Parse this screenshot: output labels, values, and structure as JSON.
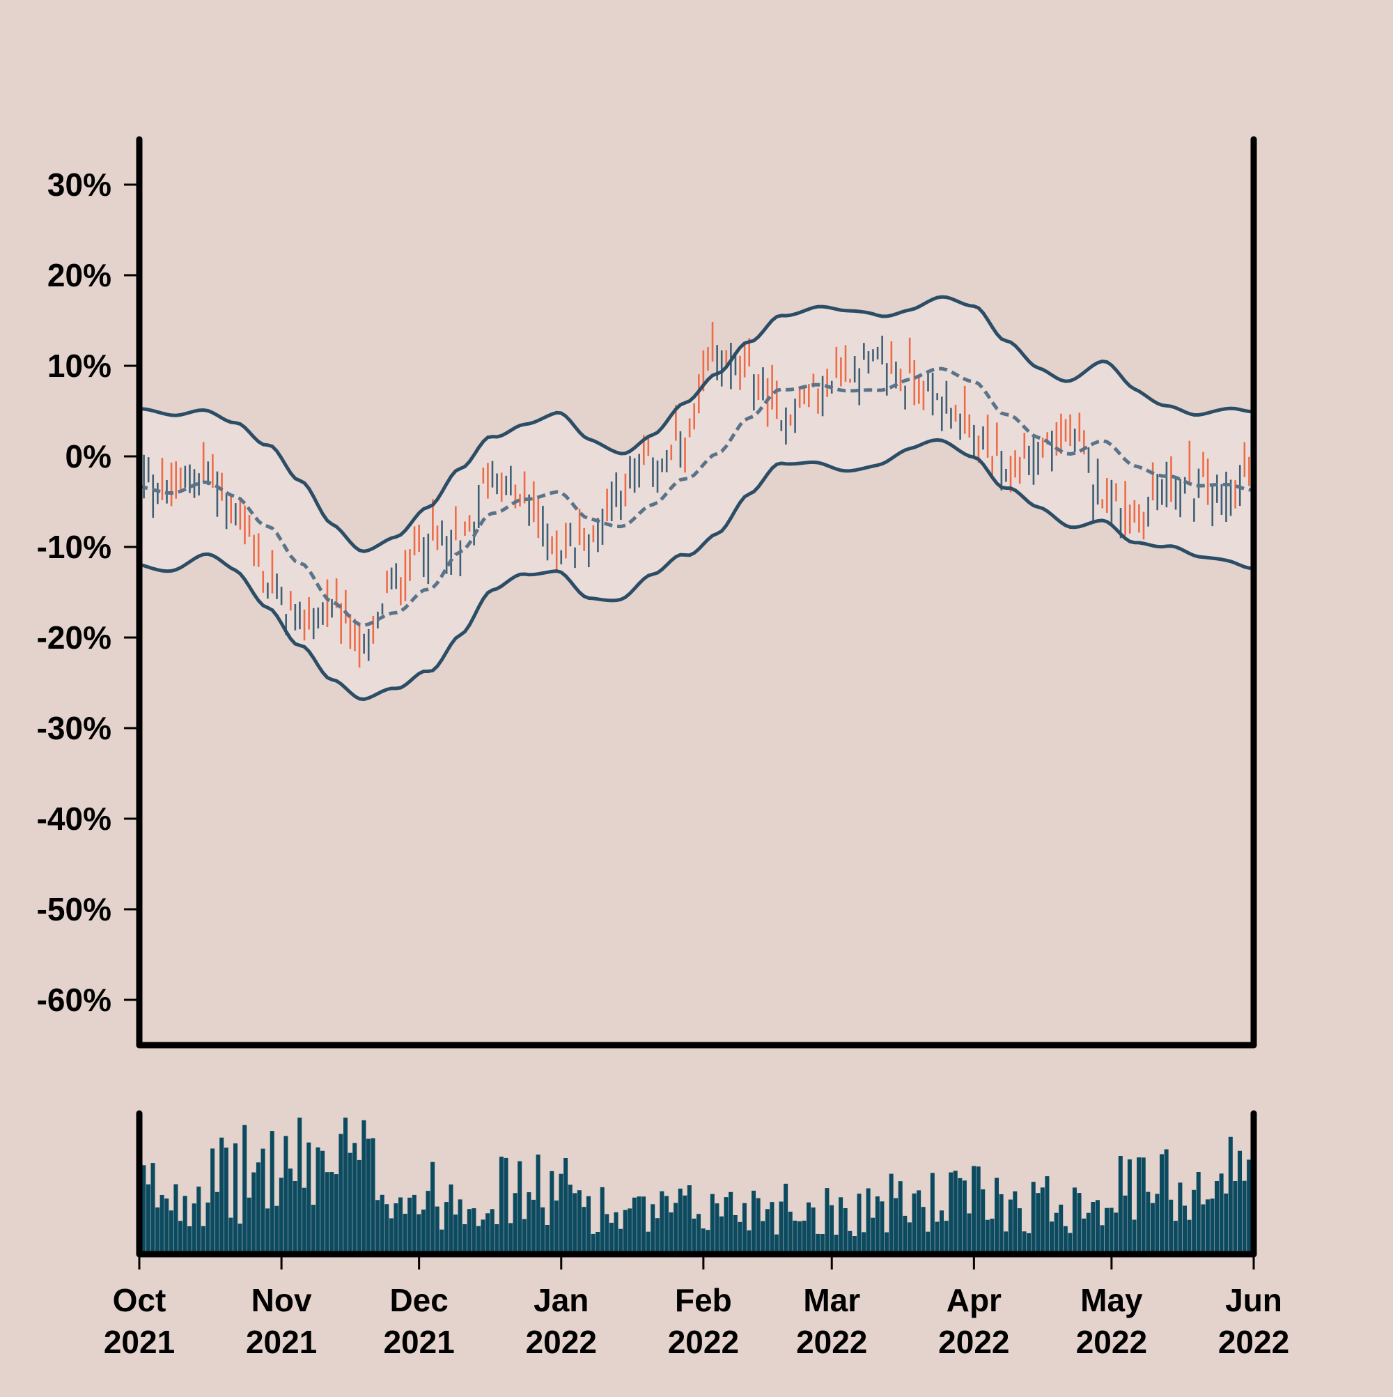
{
  "chart_data": {
    "type": "ohlc",
    "title": "",
    "xlabel": "",
    "ylabel": "",
    "y_axis": {
      "ylim": [
        -65,
        35
      ],
      "ticks": [
        30,
        20,
        10,
        0,
        -10,
        -20,
        -30,
        -40,
        -50,
        -60
      ],
      "tick_labels": [
        "30%",
        "20%",
        "10%",
        "0%",
        "-10%",
        "-20%",
        "-30%",
        "-40%",
        "-50%",
        "-60%"
      ]
    },
    "x_axis": {
      "xlim": [
        "2021-10-01",
        "2022-06-01"
      ],
      "ticks": [
        "2021-10-01",
        "2021-11-01",
        "2021-12-01",
        "2022-01-01",
        "2022-02-01",
        "2022-03-01",
        "2022-04-01",
        "2022-05-01",
        "2022-06-01"
      ],
      "tick_labels": [
        [
          "Oct",
          "2021"
        ],
        [
          "Nov",
          "2021"
        ],
        [
          "Dec",
          "2021"
        ],
        [
          "Jan",
          "2022"
        ],
        [
          "Feb",
          "2022"
        ],
        [
          "Mar",
          "2022"
        ],
        [
          "Apr",
          "2022"
        ],
        [
          "May",
          "2022"
        ],
        [
          "Jun",
          "2022"
        ]
      ]
    },
    "grid": false,
    "legend": "none",
    "colors": {
      "background": "#e4d3cc",
      "band_fill": "#eadcd8",
      "up": "#3e5f74",
      "down": "#ee6b47",
      "band_line": "#2b4d66",
      "middle_line": "#5a7389",
      "volume": "#0c4a60",
      "axis": "#000000"
    },
    "middle_band_path": [
      [
        "2021-10-01",
        -3.5
      ],
      [
        "2021-10-08",
        -3.8
      ],
      [
        "2021-10-15",
        -3.0
      ],
      [
        "2021-10-22",
        -4.5
      ],
      [
        "2021-10-29",
        -7.5
      ],
      [
        "2021-11-05",
        -12.0
      ],
      [
        "2021-11-12",
        -16.0
      ],
      [
        "2021-11-19",
        -18.5
      ],
      [
        "2021-11-26",
        -17.5
      ],
      [
        "2021-12-03",
        -14.5
      ],
      [
        "2021-12-10",
        -10.5
      ],
      [
        "2021-12-17",
        -6.5
      ],
      [
        "2021-12-24",
        -4.5
      ],
      [
        "2021-12-31",
        -4.0
      ],
      [
        "2022-01-07",
        -7.0
      ],
      [
        "2022-01-14",
        -7.5
      ],
      [
        "2022-01-21",
        -5.5
      ],
      [
        "2022-01-28",
        -2.5
      ],
      [
        "2022-02-04",
        0.5
      ],
      [
        "2022-02-11",
        4.0
      ],
      [
        "2022-02-18",
        7.5
      ],
      [
        "2022-02-25",
        8.0
      ],
      [
        "2022-03-04",
        7.0
      ],
      [
        "2022-03-11",
        7.5
      ],
      [
        "2022-03-18",
        8.5
      ],
      [
        "2022-03-25",
        9.5
      ],
      [
        "2022-04-01",
        8.5
      ],
      [
        "2022-04-08",
        4.5
      ],
      [
        "2022-04-15",
        2.0
      ],
      [
        "2022-04-22",
        0.5
      ],
      [
        "2022-04-29",
        1.5
      ],
      [
        "2022-05-06",
        -1.0
      ],
      [
        "2022-05-13",
        -2.0
      ],
      [
        "2022-05-20",
        -3.5
      ],
      [
        "2022-05-27",
        -3.0
      ],
      [
        "2022-06-01",
        -3.5
      ]
    ],
    "band_width_path": [
      [
        "2021-10-01",
        8.5
      ],
      [
        "2021-10-15",
        8.0
      ],
      [
        "2021-10-29",
        9.0
      ],
      [
        "2021-11-12",
        8.5
      ],
      [
        "2021-11-26",
        8.5
      ],
      [
        "2021-12-10",
        9.0
      ],
      [
        "2021-12-24",
        8.5
      ],
      [
        "2022-01-07",
        8.5
      ],
      [
        "2022-01-21",
        8.0
      ],
      [
        "2022-02-04",
        8.5
      ],
      [
        "2022-02-18",
        8.5
      ],
      [
        "2022-03-04",
        8.5
      ],
      [
        "2022-03-18",
        8.0
      ],
      [
        "2022-04-01",
        8.0
      ],
      [
        "2022-04-15",
        8.0
      ],
      [
        "2022-04-29",
        8.5
      ],
      [
        "2022-05-13",
        8.0
      ],
      [
        "2022-06-01",
        8.3
      ]
    ],
    "price_path": [
      [
        "2021-10-01",
        -2.0
      ],
      [
        "2021-10-08",
        -4.0
      ],
      [
        "2021-10-15",
        -1.5
      ],
      [
        "2021-10-22",
        -6.0
      ],
      [
        "2021-10-29",
        -14.0
      ],
      [
        "2021-11-05",
        -18.0
      ],
      [
        "2021-11-12",
        -17.0
      ],
      [
        "2021-11-19",
        -21.0
      ],
      [
        "2021-11-26",
        -14.0
      ],
      [
        "2021-12-03",
        -9.0
      ],
      [
        "2021-12-10",
        -10.0
      ],
      [
        "2021-12-17",
        -2.0
      ],
      [
        "2021-12-24",
        -5.0
      ],
      [
        "2021-12-31",
        -10.0
      ],
      [
        "2022-01-07",
        -9.0
      ],
      [
        "2022-01-14",
        -3.0
      ],
      [
        "2022-01-21",
        -1.0
      ],
      [
        "2022-01-28",
        1.0
      ],
      [
        "2022-02-04",
        11.0
      ],
      [
        "2022-02-11",
        9.0
      ],
      [
        "2022-02-18",
        4.5
      ],
      [
        "2022-02-25",
        6.5
      ],
      [
        "2022-03-04",
        9.5
      ],
      [
        "2022-03-11",
        10.5
      ],
      [
        "2022-03-18",
        8.5
      ],
      [
        "2022-03-25",
        6.5
      ],
      [
        "2022-04-01",
        2.0
      ],
      [
        "2022-04-08",
        -2.0
      ],
      [
        "2022-04-15",
        1.0
      ],
      [
        "2022-04-22",
        2.0
      ],
      [
        "2022-04-29",
        -3.5
      ],
      [
        "2022-05-06",
        -7.0
      ],
      [
        "2022-05-13",
        -3.0
      ],
      [
        "2022-05-20",
        -3.5
      ],
      [
        "2022-05-27",
        -4.0
      ],
      [
        "2022-06-01",
        -1.5
      ]
    ],
    "volume_profile": [
      [
        "2021-10-01",
        0.5
      ],
      [
        "2021-10-15",
        0.55
      ],
      [
        "2021-11-01",
        0.7
      ],
      [
        "2021-11-15",
        0.75
      ],
      [
        "2021-12-01",
        0.45
      ],
      [
        "2021-12-15",
        0.5
      ],
      [
        "2022-01-01",
        0.5
      ],
      [
        "2022-01-15",
        0.3
      ],
      [
        "2022-02-01",
        0.35
      ],
      [
        "2022-02-15",
        0.4
      ],
      [
        "2022-03-01",
        0.35
      ],
      [
        "2022-03-15",
        0.4
      ],
      [
        "2022-04-01",
        0.45
      ],
      [
        "2022-04-15",
        0.4
      ],
      [
        "2022-05-01",
        0.5
      ],
      [
        "2022-05-15",
        0.55
      ],
      [
        "2022-06-01",
        0.65
      ]
    ]
  }
}
